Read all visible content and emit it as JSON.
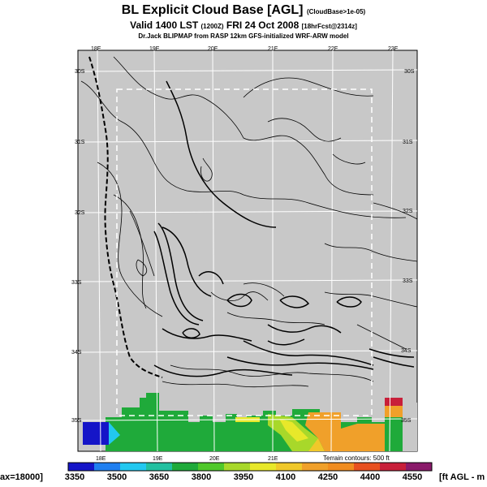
{
  "header": {
    "title": "BL Explicit Cloud Base [AGL]",
    "title_note": "(CloudBase>1e-05)",
    "valid": "Valid 1400 LST",
    "valid_note": "(1200Z)",
    "date": "FRI 24 Oct 2008",
    "date_note": "[18hrFcst@2314z]",
    "source": "Dr.Jack BLIPMAP from RASP 12km GFS-initialized WRF-ARW model"
  },
  "map": {
    "lon_labels_top": [
      "18E",
      "19E",
      "20E",
      "21E",
      "22E",
      "23E"
    ],
    "lon_labels_bottom": [
      "18E",
      "19E",
      "20E",
      "21E"
    ],
    "lat_labels_left": [
      "30S",
      "31S",
      "32S",
      "33S",
      "34S",
      "35S"
    ],
    "lat_labels_right": [
      "30S",
      "31S",
      "32S",
      "33S",
      "34S",
      "35S"
    ],
    "terrain_note": "Terrain contours: 500 ft",
    "background_color": "#c8c8c8"
  },
  "colorbar": {
    "left_label": "ax=18000]",
    "units_label": "[ft AGL - m",
    "ticks": [
      "3350",
      "3500",
      "3650",
      "3800",
      "3950",
      "4100",
      "4250",
      "4400",
      "4550"
    ],
    "colors": [
      "#1515c8",
      "#1f7ff0",
      "#22c8f0",
      "#22c0a0",
      "#1faa3a",
      "#4fc82a",
      "#a8d82a",
      "#e8e82a",
      "#f0c82a",
      "#f0a02a",
      "#f08c1f",
      "#e8501f",
      "#c81f3a",
      "#8a1a6a"
    ]
  }
}
